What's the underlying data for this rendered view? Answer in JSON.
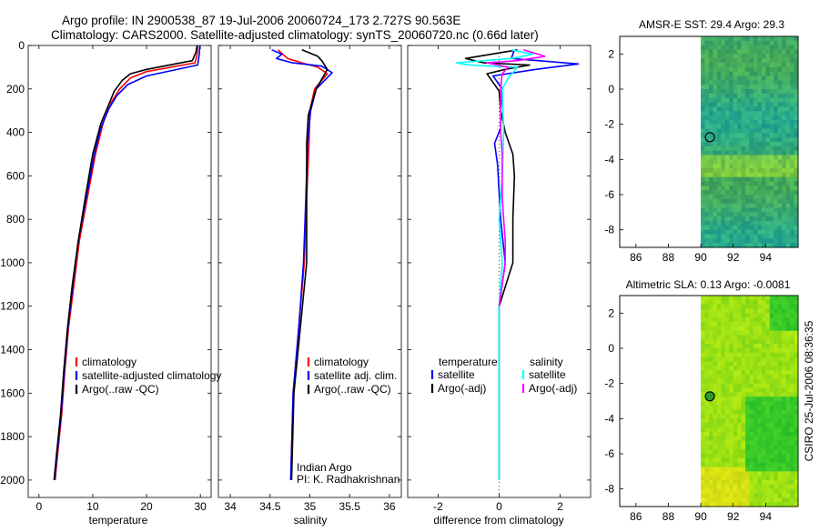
{
  "header": {
    "title_line1": "Argo profile: IN 2900538_87 19-Jul-2006 20060724_173 2.727S 90.563E",
    "title_line2": "Climatology: CARS2000. Satellite-adjusted climatology: synTS_20060720.nc (0.66d later)"
  },
  "side_stamp": "CSIRO 25-Jul-2006 08:36:35",
  "colors": {
    "red": "#ff0000",
    "blue": "#0000ff",
    "black": "#000000",
    "cyan": "#00ffff",
    "magenta": "#ff00ff",
    "green": "#1fc31f",
    "lime": "#9adc1a"
  },
  "chart_data": [
    {
      "type": "line",
      "id": "temperature",
      "xlabel": "temperature",
      "ylabel": "",
      "xlim": [
        -2,
        32
      ],
      "ylim": [
        2080,
        0
      ],
      "xticks": [
        "0",
        "10",
        "20",
        "30"
      ],
      "yticks": [
        "0",
        "200",
        "400",
        "600",
        "800",
        "1000",
        "1200",
        "1400",
        "1600",
        "1800",
        "2000"
      ],
      "legend": [
        "climatology",
        "satellite-adjusted climatology",
        "Argo(..raw -QC)"
      ],
      "series": [
        {
          "name": "climatology",
          "color": "#ff0000",
          "points": [
            [
              29.5,
              0
            ],
            [
              29.4,
              40
            ],
            [
              29,
              80
            ],
            [
              20,
              120
            ],
            [
              17,
              150
            ],
            [
              15,
              200
            ],
            [
              13.5,
              260
            ],
            [
              12,
              350
            ],
            [
              10.5,
              500
            ],
            [
              9,
              700
            ],
            [
              7.5,
              900
            ],
            [
              6.5,
              1100
            ],
            [
              5.5,
              1300
            ],
            [
              4.8,
              1500
            ],
            [
              4.2,
              1700
            ],
            [
              3.4,
              1900
            ],
            [
              3,
              2000
            ]
          ]
        },
        {
          "name": "satellite-adjusted climatology",
          "color": "#0000ff",
          "points": [
            [
              29.9,
              0
            ],
            [
              29.8,
              40
            ],
            [
              29.5,
              90
            ],
            [
              20,
              140
            ],
            [
              16.5,
              180
            ],
            [
              14.5,
              230
            ],
            [
              13,
              290
            ],
            [
              11.5,
              380
            ],
            [
              10.3,
              500
            ],
            [
              8.8,
              700
            ],
            [
              7.3,
              900
            ],
            [
              6.3,
              1100
            ],
            [
              5.4,
              1300
            ],
            [
              4.7,
              1500
            ],
            [
              4.1,
              1700
            ],
            [
              3.3,
              1900
            ],
            [
              2.9,
              2000
            ]
          ]
        },
        {
          "name": "Argo(..raw -QC)",
          "color": "#000000",
          "points": [
            [
              29.4,
              0
            ],
            [
              29.2,
              30
            ],
            [
              28.5,
              70
            ],
            [
              20,
              110
            ],
            [
              17,
              130
            ],
            [
              15.5,
              160
            ],
            [
              14,
              210
            ],
            [
              13,
              270
            ],
            [
              11.5,
              360
            ],
            [
              10,
              500
            ],
            [
              8.6,
              700
            ],
            [
              7.3,
              900
            ],
            [
              6.2,
              1100
            ],
            [
              5.3,
              1300
            ],
            [
              4.6,
              1500
            ],
            [
              4,
              1700
            ],
            [
              3.2,
              1900
            ],
            [
              2.8,
              2000
            ]
          ]
        }
      ]
    },
    {
      "type": "line",
      "id": "salinity",
      "xlabel": "salinity",
      "xlim": [
        33.85,
        36.15
      ],
      "ylim": [
        2080,
        0
      ],
      "xticks": [
        "34",
        "34.5",
        "35",
        "35.5",
        "36"
      ],
      "legend": [
        "climatology",
        "satellite adj. clim.",
        "Argo(..raw -QC)"
      ],
      "annotation_lines": [
        "Indian Argo",
        "PI: K. Radhakrishnan"
      ],
      "series": [
        {
          "name": "climatology",
          "color": "#ff0000",
          "points": [
            [
              34.6,
              20
            ],
            [
              34.72,
              60
            ],
            [
              34.9,
              80
            ],
            [
              35.1,
              100
            ],
            [
              35.22,
              130
            ],
            [
              35.06,
              200
            ],
            [
              35.0,
              300
            ],
            [
              34.99,
              450
            ],
            [
              34.96,
              700
            ],
            [
              34.93,
              1000
            ],
            [
              34.86,
              1300
            ],
            [
              34.79,
              1600
            ],
            [
              34.76,
              2000
            ]
          ]
        },
        {
          "name": "satellite adj. clim.",
          "color": "#0000ff",
          "points": [
            [
              34.52,
              20
            ],
            [
              34.65,
              40
            ],
            [
              34.58,
              60
            ],
            [
              34.78,
              80
            ],
            [
              35.15,
              95
            ],
            [
              35.28,
              125
            ],
            [
              35.08,
              200
            ],
            [
              35.01,
              300
            ],
            [
              34.97,
              450
            ],
            [
              34.95,
              700
            ],
            [
              34.92,
              1000
            ],
            [
              34.86,
              1300
            ],
            [
              34.79,
              1600
            ],
            [
              34.76,
              2000
            ]
          ]
        },
        {
          "name": "Argo(..raw -QC)",
          "color": "#000000",
          "points": [
            [
              34.9,
              20
            ],
            [
              35.1,
              50
            ],
            [
              35.15,
              70
            ],
            [
              35.22,
              110
            ],
            [
              35.08,
              200
            ],
            [
              34.98,
              320
            ],
            [
              34.96,
              450
            ],
            [
              34.96,
              700
            ],
            [
              34.96,
              1000
            ],
            [
              34.88,
              1300
            ],
            [
              34.8,
              1600
            ],
            [
              34.77,
              2000
            ]
          ]
        }
      ]
    },
    {
      "type": "line",
      "id": "difference",
      "xlabel": "difference from climatology",
      "xlim": [
        -3,
        3
      ],
      "ylim": [
        2080,
        0
      ],
      "xticks": [
        "-2",
        "0",
        "2"
      ],
      "legend_headers": [
        "temperature",
        "salinity"
      ],
      "legend": [
        "satellite",
        "Argo(-adj)",
        "satellite",
        "Argo(-adj)"
      ],
      "series": [
        {
          "name": "temperature satellite",
          "color": "#0000ff",
          "points": [
            [
              0.5,
              20
            ],
            [
              0.4,
              60
            ],
            [
              2.6,
              85
            ],
            [
              1.2,
              110
            ],
            [
              -0.2,
              140
            ],
            [
              0.1,
              200
            ],
            [
              0.05,
              300
            ],
            [
              0.05,
              380
            ],
            [
              -0.15,
              450
            ],
            [
              -0.05,
              550
            ],
            [
              0.05,
              800
            ],
            [
              0.2,
              1000
            ],
            [
              0.0,
              1200
            ],
            [
              0,
              1600
            ],
            [
              0,
              2000
            ]
          ]
        },
        {
          "name": "temperature Argo(-adj)",
          "color": "#000000",
          "points": [
            [
              0.6,
              20
            ],
            [
              -1.1,
              60
            ],
            [
              -0.5,
              80
            ],
            [
              1.0,
              90
            ],
            [
              0.2,
              110
            ],
            [
              -0.4,
              130
            ],
            [
              -0.2,
              170
            ],
            [
              0,
              210
            ],
            [
              0.05,
              300
            ],
            [
              0.2,
              400
            ],
            [
              0.45,
              500
            ],
            [
              0.5,
              600
            ],
            [
              0.45,
              800
            ],
            [
              0.45,
              1000
            ],
            [
              0,
              1200
            ]
          ]
        },
        {
          "name": "salinity satellite",
          "color": "#00ffff",
          "points": [
            [
              0.4,
              20
            ],
            [
              1.1,
              40
            ],
            [
              0.4,
              60
            ],
            [
              -1.4,
              80
            ],
            [
              -1.0,
              90
            ],
            [
              0.6,
              100
            ],
            [
              0.3,
              150
            ],
            [
              0.1,
              200
            ],
            [
              0.15,
              400
            ],
            [
              0.1,
              600
            ],
            [
              0.0,
              800
            ],
            [
              0.1,
              1000
            ],
            [
              0,
              1200
            ],
            [
              0,
              1600
            ],
            [
              0,
              2000
            ]
          ]
        },
        {
          "name": "salinity Argo(-adj)",
          "color": "#ff00ff",
          "points": [
            [
              0.8,
              20
            ],
            [
              1.5,
              50
            ],
            [
              0.6,
              70
            ],
            [
              -0.4,
              80
            ],
            [
              0.3,
              100
            ],
            [
              0.1,
              130
            ],
            [
              0.05,
              200
            ],
            [
              0.05,
              300
            ],
            [
              0.05,
              400
            ],
            [
              0.1,
              500
            ],
            [
              0.1,
              700
            ],
            [
              0.15,
              800
            ],
            [
              0.2,
              900
            ],
            [
              0.2,
              1000
            ],
            [
              0,
              1200
            ]
          ]
        }
      ]
    },
    {
      "type": "heatmap",
      "id": "sst",
      "title": "AMSR-E SST: 29.4 Argo: 29.3",
      "xlim": [
        85,
        96
      ],
      "ylim": [
        -9,
        3
      ],
      "xticks": [
        "86",
        "88",
        "90",
        "92",
        "94"
      ],
      "yticks": [
        "2",
        "0",
        "-2",
        "-4",
        "-6",
        "-8"
      ],
      "marker": {
        "lon": 90.56,
        "lat": -2.73
      }
    },
    {
      "type": "heatmap",
      "id": "sla",
      "title": "Altimetric SLA: 0.13 Argo: -0.0081",
      "xlim": [
        85,
        96
      ],
      "ylim": [
        -9,
        3
      ],
      "xticks": [
        "86",
        "88",
        "90",
        "92",
        "94"
      ],
      "yticks": [
        "2",
        "0",
        "-2",
        "-4",
        "-6",
        "-8"
      ],
      "marker": {
        "lon": 90.56,
        "lat": -2.73
      }
    }
  ]
}
